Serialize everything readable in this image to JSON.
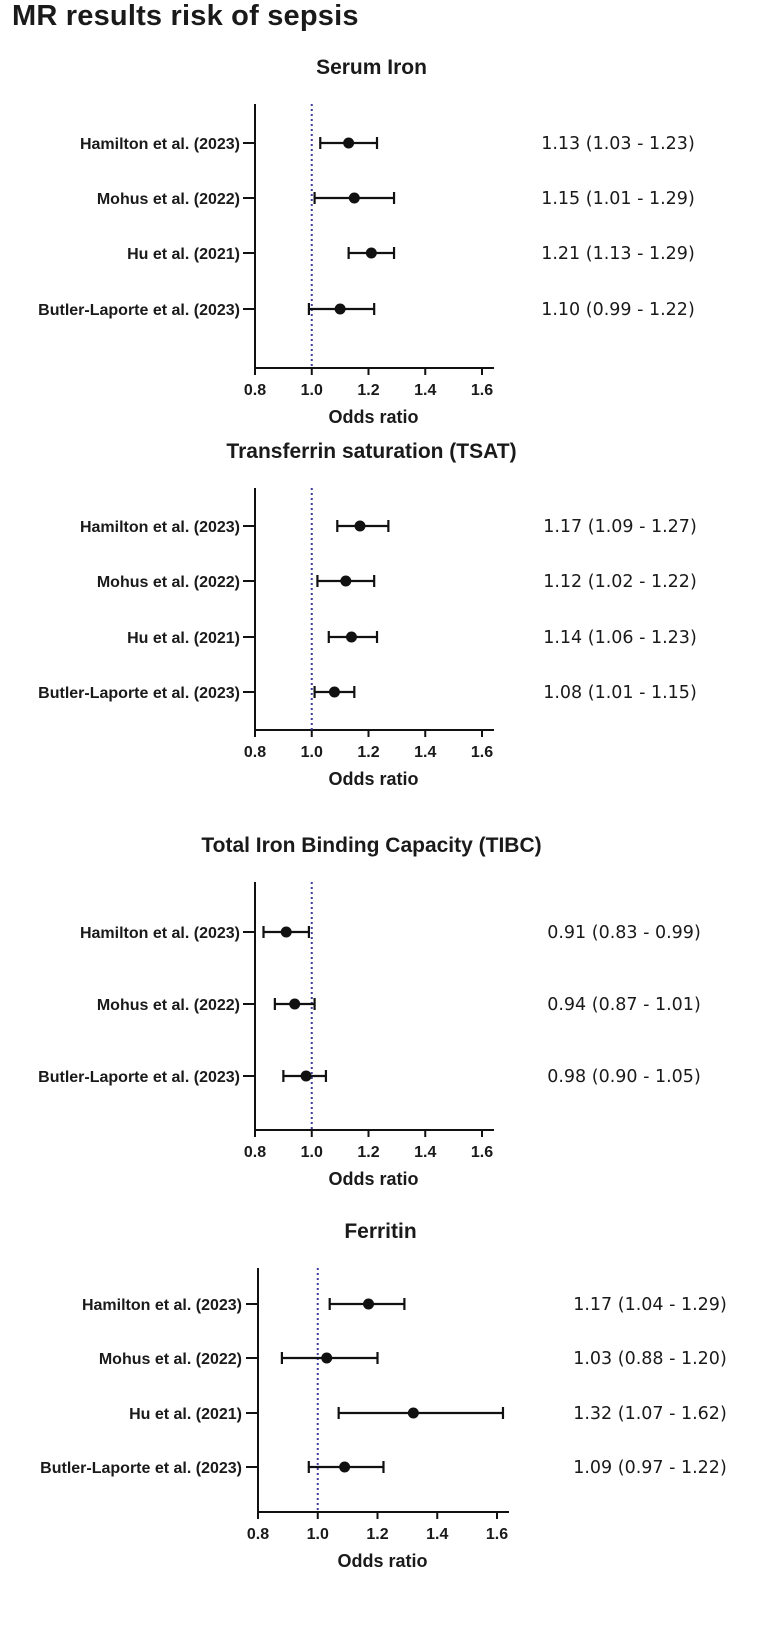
{
  "title": "MR results risk of sepsis",
  "colors": {
    "marks": "#111111",
    "reference_line": "#3d3d9e"
  },
  "chart_data": [
    {
      "type": "forest",
      "title": "Serum Iron",
      "xlabel": "Odds ratio",
      "xlim": [
        0.8,
        1.6
      ],
      "xticks": [
        "0.8",
        "1.0",
        "1.2",
        "1.4",
        "1.6"
      ],
      "reference_line": 1.0,
      "rows": [
        {
          "study": "Hamilton et al. (2023)",
          "or": 1.13,
          "lower": 1.03,
          "upper": 1.23,
          "label": "1.13 (1.03 - 1.23)"
        },
        {
          "study": "Mohus et al. (2022)",
          "or": 1.15,
          "lower": 1.01,
          "upper": 1.29,
          "label": "1.15 (1.01 - 1.29)"
        },
        {
          "study": "Hu et al. (2021)",
          "or": 1.21,
          "lower": 1.13,
          "upper": 1.29,
          "label": "1.21 (1.13 - 1.29)"
        },
        {
          "study": "Butler-Laporte et al. (2023)",
          "or": 1.1,
          "lower": 0.99,
          "upper": 1.22,
          "label": "1.10 (0.99 - 1.22)"
        }
      ]
    },
    {
      "type": "forest",
      "title": "Transferrin saturation (TSAT)",
      "xlabel": "Odds ratio",
      "xlim": [
        0.8,
        1.6
      ],
      "xticks": [
        "0.8",
        "1.0",
        "1.2",
        "1.4",
        "1.6"
      ],
      "reference_line": 1.0,
      "rows": [
        {
          "study": "Hamilton et al. (2023)",
          "or": 1.17,
          "lower": 1.09,
          "upper": 1.27,
          "label": "1.17 (1.09 - 1.27)"
        },
        {
          "study": "Mohus et al. (2022)",
          "or": 1.12,
          "lower": 1.02,
          "upper": 1.22,
          "label": "1.12 (1.02 - 1.22)"
        },
        {
          "study": "Hu et al. (2021)",
          "or": 1.14,
          "lower": 1.06,
          "upper": 1.23,
          "label": "1.14 (1.06 - 1.23)"
        },
        {
          "study": "Butler-Laporte et al. (2023)",
          "or": 1.08,
          "lower": 1.01,
          "upper": 1.15,
          "label": "1.08 (1.01 - 1.15)"
        }
      ]
    },
    {
      "type": "forest",
      "title": "Total Iron Binding Capacity (TIBC)",
      "xlabel": "Odds ratio",
      "xlim": [
        0.8,
        1.6
      ],
      "xticks": [
        "0.8",
        "1.0",
        "1.2",
        "1.4",
        "1.6"
      ],
      "reference_line": 1.0,
      "rows": [
        {
          "study": "Hamilton et al. (2023)",
          "or": 0.91,
          "lower": 0.83,
          "upper": 0.99,
          "label": "0.91 (0.83 - 0.99)"
        },
        {
          "study": "Mohus et al. (2022)",
          "or": 0.94,
          "lower": 0.87,
          "upper": 1.01,
          "label": "0.94 (0.87 - 1.01)"
        },
        {
          "study": "Butler-Laporte et al. (2023)",
          "or": 0.98,
          "lower": 0.9,
          "upper": 1.05,
          "label": "0.98 (0.90 - 1.05)"
        }
      ]
    },
    {
      "type": "forest",
      "title": "Ferritin",
      "xlabel": "Odds ratio",
      "xlim": [
        0.8,
        1.6
      ],
      "xticks": [
        "0.8",
        "1.0",
        "1.2",
        "1.4",
        "1.6"
      ],
      "reference_line": 1.0,
      "rows": [
        {
          "study": "Hamilton et al. (2023)",
          "or": 1.17,
          "lower": 1.04,
          "upper": 1.29,
          "label": "1.17 (1.04 - 1.29)"
        },
        {
          "study": "Mohus et al. (2022)",
          "or": 1.03,
          "lower": 0.88,
          "upper": 1.2,
          "label": "1.03 (0.88 - 1.20)"
        },
        {
          "study": "Hu et al. (2021)",
          "or": 1.32,
          "lower": 1.07,
          "upper": 1.62,
          "label": "1.32 (1.07 - 1.62)"
        },
        {
          "study": "Butler-Laporte et al. (2023)",
          "or": 1.09,
          "lower": 0.97,
          "upper": 1.22,
          "label": "1.09 (0.97 - 1.22)"
        }
      ]
    }
  ]
}
